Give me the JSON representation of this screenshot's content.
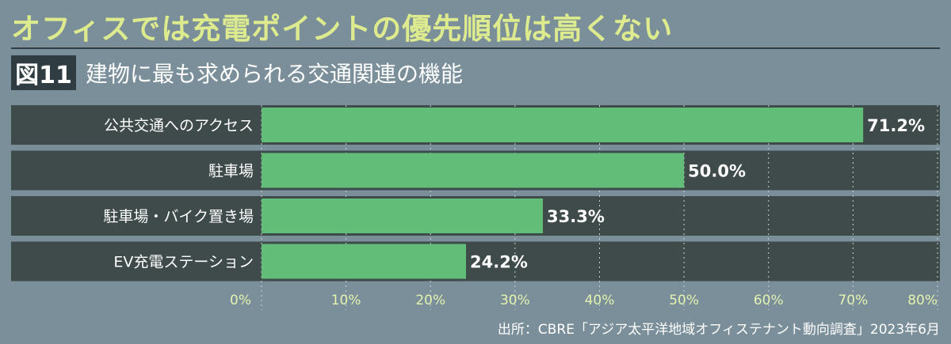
{
  "headline": "オフィスでは充電ポイントの優先順位は高くない",
  "figure_label": "図11",
  "figure_title": "建物に最も求められる交通関連の機能",
  "source": "出所：CBRE「アジア太平洋地域オフィステナント動向調査」2023年6月",
  "colors": {
    "background": "#7a8f99",
    "plot_band": "#3f4a4b",
    "bar": "#62bd78",
    "headline": "#ddeb8e",
    "tick_label": "#e4f2b0"
  },
  "chart_data": {
    "type": "bar",
    "orientation": "horizontal",
    "categories": [
      "公共交通へのアクセス",
      "駐車場",
      "駐車場・バイク置き場",
      "EV充電ステーション"
    ],
    "values": [
      71.2,
      50.0,
      33.3,
      24.2
    ],
    "value_labels": [
      "71.2%",
      "50.0%",
      "33.3%",
      "24.2%"
    ],
    "xlim": [
      0,
      80
    ],
    "x_ticks": [
      0,
      10,
      20,
      30,
      40,
      50,
      60,
      70,
      80
    ],
    "x_tick_labels": [
      "0%",
      "10%",
      "20%",
      "30%",
      "40%",
      "50%",
      "60%",
      "70%",
      "80%"
    ],
    "grid": "dotted vertical",
    "legend": "none"
  }
}
